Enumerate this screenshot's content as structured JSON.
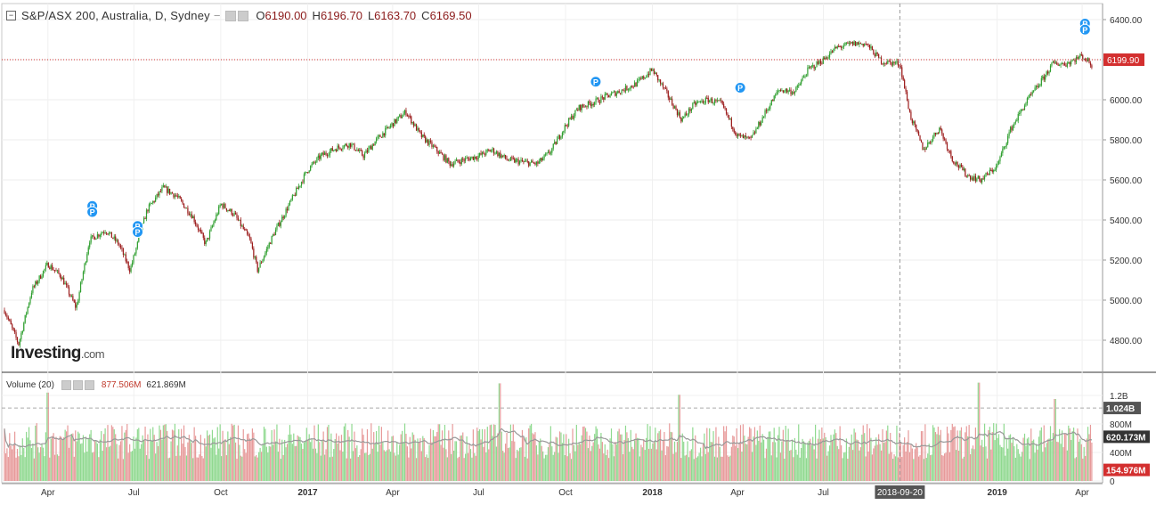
{
  "header": {
    "title": "S&P/ASX 200, Australia, D, Sydney",
    "open_label": "O",
    "open": "6190.00",
    "high_label": "H",
    "high": "6196.70",
    "low_label": "L",
    "low": "6163.70",
    "close_label": "C",
    "close": "6169.50"
  },
  "volume_legend": {
    "label": "Volume (20)",
    "value": "877.506M",
    "ma_value": "621.869M"
  },
  "watermark": {
    "brand": "Investing",
    "suffix": ".com"
  },
  "colors": {
    "up": "#2e9e2e",
    "down": "#9b1a1a",
    "vol_up": "#8fd98f",
    "vol_down": "#e79a9a",
    "price_line": "#d32f2f",
    "ma_line": "#999999"
  },
  "chart_data": [
    {
      "type": "candlestick",
      "title": "S&P/ASX 200, Australia, D, Sydney",
      "xlabel": "",
      "ylabel": "",
      "ylim": [
        4640,
        6480
      ],
      "y_ticks": [
        "6400.00",
        "6200.00",
        "6000.00",
        "5800.00",
        "5600.00",
        "5400.00",
        "5200.00",
        "5000.00",
        "4800.00"
      ],
      "x_ticks": [
        "Apr",
        "Jul",
        "Oct",
        "2017",
        "Apr",
        "Jul",
        "Oct",
        "2018",
        "Apr",
        "Jul",
        "2018-09-20",
        "2019",
        "Apr"
      ],
      "last_price": 6199.9,
      "last_price_label": "6199.90",
      "crosshair_label": "2018-09-20",
      "grid": true,
      "p_markers": [
        "P",
        "P",
        "P",
        "P",
        "P",
        "P",
        "P",
        "P"
      ],
      "series": [
        {
          "x": [
            "2016-02-15",
            "2016-03-01",
            "2016-03-15",
            "2016-04-01",
            "2016-04-15",
            "2016-05-01",
            "2016-05-15",
            "2016-06-01",
            "2016-06-15",
            "2016-06-27",
            "2016-07-15",
            "2016-08-01",
            "2016-08-15",
            "2016-09-01",
            "2016-09-15",
            "2016-10-01",
            "2016-10-15",
            "2016-11-01",
            "2016-11-09",
            "2016-11-25",
            "2016-12-15",
            "2017-01-01",
            "2017-01-15",
            "2017-02-01",
            "2017-02-15",
            "2017-03-01",
            "2017-03-15",
            "2017-04-01",
            "2017-04-15",
            "2017-05-01",
            "2017-05-15",
            "2017-06-01",
            "2017-06-15",
            "2017-07-01",
            "2017-07-15",
            "2017-08-01",
            "2017-08-15",
            "2017-09-01",
            "2017-09-15",
            "2017-10-01",
            "2017-10-15",
            "2017-11-01",
            "2017-11-15",
            "2017-12-01",
            "2017-12-15",
            "2018-01-01",
            "2018-01-15",
            "2018-02-01",
            "2018-02-15",
            "2018-03-01",
            "2018-03-15",
            "2018-04-01",
            "2018-04-15",
            "2018-05-01",
            "2018-05-15",
            "2018-06-01",
            "2018-06-15",
            "2018-07-01",
            "2018-07-15",
            "2018-08-01",
            "2018-08-15",
            "2018-09-01",
            "2018-09-20",
            "2018-10-01",
            "2018-10-15",
            "2018-11-01",
            "2018-11-15",
            "2018-12-01",
            "2018-12-15",
            "2019-01-01",
            "2019-01-15",
            "2019-02-01",
            "2019-02-15",
            "2019-03-01",
            "2019-03-15",
            "2019-04-01",
            "2019-04-12"
          ],
          "close": [
            4950,
            4780,
            5050,
            5180,
            5120,
            4960,
            5300,
            5350,
            5280,
            5150,
            5450,
            5560,
            5520,
            5420,
            5280,
            5480,
            5430,
            5300,
            5150,
            5320,
            5500,
            5650,
            5720,
            5760,
            5780,
            5720,
            5800,
            5880,
            5940,
            5820,
            5760,
            5680,
            5700,
            5720,
            5750,
            5700,
            5690,
            5680,
            5740,
            5870,
            5960,
            5990,
            6020,
            6050,
            6080,
            6150,
            6040,
            5900,
            5980,
            6000,
            5980,
            5820,
            5800,
            5940,
            6050,
            6040,
            6150,
            6200,
            6260,
            6280,
            6280,
            6190,
            6180,
            5920,
            5750,
            5860,
            5700,
            5620,
            5600,
            5670,
            5850,
            5990,
            6080,
            6180,
            6180,
            6220,
            6170
          ]
        }
      ]
    },
    {
      "type": "bar",
      "title": "Volume (20)",
      "ylim": [
        0,
        1300000000
      ],
      "y_ticks": [
        "1.2B",
        "1.024B",
        "800M",
        "620.173M",
        "400M",
        "154.976M",
        "0"
      ],
      "dashed_level": 1024000000,
      "ma_level": 620173000,
      "last_volume_label": "154.976M",
      "series": [
        {
          "name": "Volume (20)",
          "typical": 560000000,
          "spike_levels": [
            1240000000,
            1370000000,
            1210000000,
            1380000000,
            1150000000
          ]
        }
      ]
    }
  ]
}
